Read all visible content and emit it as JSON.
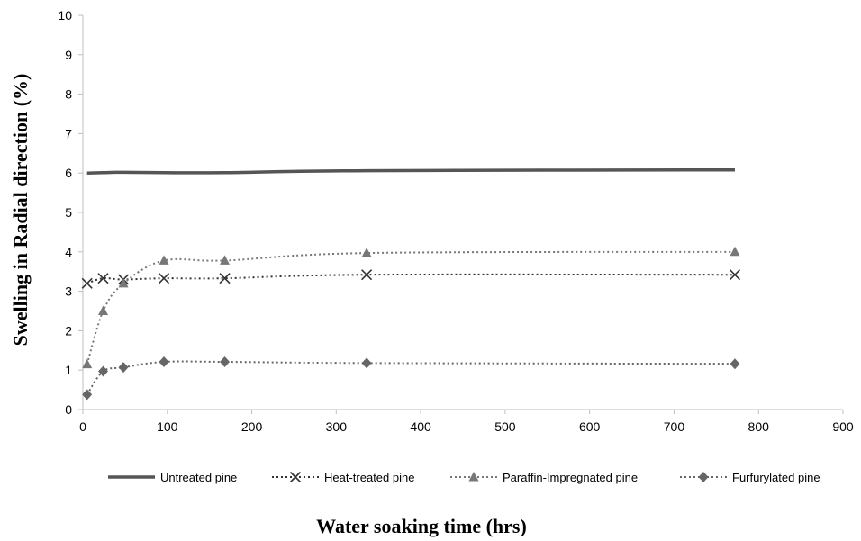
{
  "chart_data": {
    "type": "line",
    "xlabel": "Water soaking time (hrs)",
    "ylabel": "Swelling in Radial direction (%)",
    "xlim": [
      0,
      900
    ],
    "ylim": [
      0,
      10
    ],
    "xticks": [
      0,
      100,
      200,
      300,
      400,
      500,
      600,
      700,
      800,
      900
    ],
    "yticks": [
      0,
      1,
      2,
      3,
      4,
      5,
      6,
      7,
      8,
      9,
      10
    ],
    "grid": false,
    "legend_position": "bottom",
    "series": [
      {
        "name": "Untreated pine",
        "style": "solid",
        "marker": "none",
        "color": "#555555",
        "x": [
          5,
          24,
          48,
          96,
          168,
          336,
          772
        ],
        "y": [
          6.0,
          6.01,
          6.02,
          6.01,
          6.01,
          6.06,
          6.08
        ]
      },
      {
        "name": "Heat-treated pine",
        "style": "dotted",
        "marker": "x",
        "color": "#333333",
        "x": [
          5,
          24,
          48,
          96,
          168,
          336,
          772
        ],
        "y": [
          3.2,
          3.33,
          3.3,
          3.33,
          3.33,
          3.42,
          3.42
        ]
      },
      {
        "name": "Paraffin-Impregnated pine",
        "style": "dotted",
        "marker": "triangle",
        "color": "#777777",
        "x": [
          5,
          24,
          48,
          96,
          168,
          336,
          772
        ],
        "y": [
          1.15,
          2.5,
          3.2,
          3.78,
          3.78,
          3.97,
          4.0
        ]
      },
      {
        "name": "Furfurylated pine",
        "style": "dotted",
        "marker": "diamond",
        "color": "#666666",
        "x": [
          5,
          24,
          48,
          96,
          168,
          336,
          772
        ],
        "y": [
          0.38,
          0.97,
          1.07,
          1.21,
          1.21,
          1.18,
          1.16
        ]
      }
    ]
  }
}
